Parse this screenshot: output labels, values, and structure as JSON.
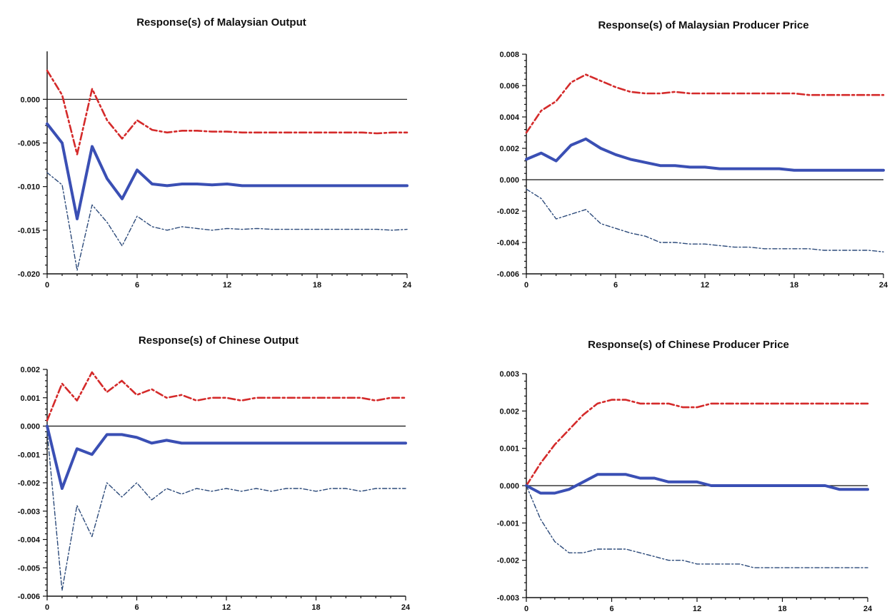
{
  "chart_data": [
    {
      "type": "line",
      "title": "Response(s) of Malaysian Output",
      "xlabel": "",
      "ylabel": "",
      "xlim": [
        0,
        24
      ],
      "ylim": [
        -0.02,
        0.0055
      ],
      "x_ticks": [
        0,
        6,
        12,
        18,
        24
      ],
      "y_ticks": [
        {
          "value": 0.0,
          "label": "0.000"
        },
        {
          "value": -0.005,
          "label": "-0.005"
        },
        {
          "value": -0.01,
          "label": "-0.010"
        },
        {
          "value": -0.015,
          "label": "-0.015"
        },
        {
          "value": -0.02,
          "label": "-0.020"
        }
      ],
      "zero_line": true,
      "x": [
        0,
        1,
        2,
        3,
        4,
        5,
        6,
        7,
        8,
        9,
        10,
        11,
        12,
        13,
        14,
        15,
        16,
        17,
        18,
        19,
        20,
        21,
        22,
        23,
        24
      ],
      "series": [
        {
          "style": "upper",
          "color": "#d42a2a",
          "values": [
            0.0033,
            0.0005,
            -0.0063,
            0.0012,
            -0.0024,
            -0.0045,
            -0.0024,
            -0.0035,
            -0.0038,
            -0.0036,
            -0.0036,
            -0.0037,
            -0.0037,
            -0.0038,
            -0.0038,
            -0.0038,
            -0.0038,
            -0.0038,
            -0.0038,
            -0.0038,
            -0.0038,
            -0.0038,
            -0.0039,
            -0.0038,
            -0.0038
          ]
        },
        {
          "style": "mid",
          "color": "#3a4fb4",
          "values": [
            -0.0028,
            -0.005,
            -0.0137,
            -0.0054,
            -0.0091,
            -0.0114,
            -0.0081,
            -0.0097,
            -0.0099,
            -0.0097,
            -0.0097,
            -0.0098,
            -0.0097,
            -0.0099,
            -0.0099,
            -0.0099,
            -0.0099,
            -0.0099,
            -0.0099,
            -0.0099,
            -0.0099,
            -0.0099,
            -0.0099,
            -0.0099,
            -0.0099
          ]
        },
        {
          "style": "lower",
          "color": "#2c4a7a",
          "values": [
            -0.0084,
            -0.0098,
            -0.0196,
            -0.0121,
            -0.0141,
            -0.0168,
            -0.0134,
            -0.0146,
            -0.015,
            -0.0146,
            -0.0148,
            -0.015,
            -0.0148,
            -0.0149,
            -0.0148,
            -0.0149,
            -0.0149,
            -0.0149,
            -0.0149,
            -0.0149,
            -0.0149,
            -0.0149,
            -0.0149,
            -0.015,
            -0.0149
          ]
        }
      ]
    },
    {
      "type": "line",
      "title": "Response(s) of Malaysian Producer Price",
      "xlabel": "",
      "ylabel": "",
      "xlim": [
        0,
        24
      ],
      "ylim": [
        -0.006,
        0.008
      ],
      "x_ticks": [
        0,
        6,
        12,
        18,
        24
      ],
      "y_ticks": [
        {
          "value": 0.008,
          "label": "0.008"
        },
        {
          "value": 0.006,
          "label": "0.006"
        },
        {
          "value": 0.004,
          "label": "0.004"
        },
        {
          "value": 0.002,
          "label": "0.002"
        },
        {
          "value": 0.0,
          "label": "0.000"
        },
        {
          "value": -0.002,
          "label": "-0.002"
        },
        {
          "value": -0.004,
          "label": "-0.004"
        },
        {
          "value": -0.006,
          "label": "-0.006"
        }
      ],
      "zero_line": true,
      "x": [
        0,
        1,
        2,
        3,
        4,
        5,
        6,
        7,
        8,
        9,
        10,
        11,
        12,
        13,
        14,
        15,
        16,
        17,
        18,
        19,
        20,
        21,
        22,
        23,
        24
      ],
      "series": [
        {
          "style": "upper",
          "color": "#d42a2a",
          "values": [
            0.003,
            0.0044,
            0.005,
            0.0062,
            0.0067,
            0.0063,
            0.0059,
            0.0056,
            0.0055,
            0.0055,
            0.0056,
            0.0055,
            0.0055,
            0.0055,
            0.0055,
            0.0055,
            0.0055,
            0.0055,
            0.0055,
            0.0054,
            0.0054,
            0.0054,
            0.0054,
            0.0054,
            0.0054
          ]
        },
        {
          "style": "mid",
          "color": "#3a4fb4",
          "values": [
            0.0013,
            0.0017,
            0.0012,
            0.0022,
            0.0026,
            0.002,
            0.0016,
            0.0013,
            0.0011,
            0.0009,
            0.0009,
            0.0008,
            0.0008,
            0.0007,
            0.0007,
            0.0007,
            0.0007,
            0.0007,
            0.0006,
            0.0006,
            0.0006,
            0.0006,
            0.0006,
            0.0006,
            0.0006
          ]
        },
        {
          "style": "lower",
          "color": "#2c4a7a",
          "values": [
            -0.0006,
            -0.0012,
            -0.0025,
            -0.0022,
            -0.0019,
            -0.0028,
            -0.0031,
            -0.0034,
            -0.0036,
            -0.004,
            -0.004,
            -0.0041,
            -0.0041,
            -0.0042,
            -0.0043,
            -0.0043,
            -0.0044,
            -0.0044,
            -0.0044,
            -0.0044,
            -0.0045,
            -0.0045,
            -0.0045,
            -0.0045,
            -0.0046
          ]
        }
      ]
    },
    {
      "type": "line",
      "title": "Response(s) of Chinese Output",
      "xlabel": "",
      "ylabel": "",
      "xlim": [
        0,
        24
      ],
      "ylim": [
        -0.006,
        0.002
      ],
      "x_ticks": [
        0,
        6,
        12,
        18,
        24
      ],
      "y_ticks": [
        {
          "value": 0.002,
          "label": "0.002"
        },
        {
          "value": 0.001,
          "label": "0.001"
        },
        {
          "value": 0.0,
          "label": "0.000"
        },
        {
          "value": -0.001,
          "label": "-0.001"
        },
        {
          "value": -0.002,
          "label": "-0.002"
        },
        {
          "value": -0.003,
          "label": "-0.003"
        },
        {
          "value": -0.004,
          "label": "-0.004"
        },
        {
          "value": -0.005,
          "label": "-0.005"
        },
        {
          "value": -0.006,
          "label": "-0.006"
        }
      ],
      "zero_line": true,
      "x": [
        0,
        1,
        2,
        3,
        4,
        5,
        6,
        7,
        8,
        9,
        10,
        11,
        12,
        13,
        14,
        15,
        16,
        17,
        18,
        19,
        20,
        21,
        22,
        23,
        24
      ],
      "series": [
        {
          "style": "upper",
          "color": "#d42a2a",
          "values": [
            0.0002,
            0.0015,
            0.0009,
            0.0019,
            0.0012,
            0.0016,
            0.0011,
            0.0013,
            0.001,
            0.0011,
            0.0009,
            0.001,
            0.001,
            0.0009,
            0.001,
            0.001,
            0.001,
            0.001,
            0.001,
            0.001,
            0.001,
            0.001,
            0.0009,
            0.001,
            0.001
          ]
        },
        {
          "style": "mid",
          "color": "#3a4fb4",
          "values": [
            0.0,
            -0.0022,
            -0.0008,
            -0.001,
            -0.0003,
            -0.0003,
            -0.0004,
            -0.0006,
            -0.0005,
            -0.0006,
            -0.0006,
            -0.0006,
            -0.0006,
            -0.0006,
            -0.0006,
            -0.0006,
            -0.0006,
            -0.0006,
            -0.0006,
            -0.0006,
            -0.0006,
            -0.0006,
            -0.0006,
            -0.0006,
            -0.0006
          ]
        },
        {
          "style": "lower",
          "color": "#2c4a7a",
          "values": [
            -0.0002,
            -0.0058,
            -0.0028,
            -0.0039,
            -0.002,
            -0.0025,
            -0.002,
            -0.0026,
            -0.0022,
            -0.0024,
            -0.0022,
            -0.0023,
            -0.0022,
            -0.0023,
            -0.0022,
            -0.0023,
            -0.0022,
            -0.0022,
            -0.0023,
            -0.0022,
            -0.0022,
            -0.0023,
            -0.0022,
            -0.0022,
            -0.0022
          ]
        }
      ]
    },
    {
      "type": "line",
      "title": "Response(s) of Chinese Producer Price",
      "xlabel": "",
      "ylabel": "",
      "xlim": [
        0,
        24
      ],
      "ylim": [
        -0.003,
        0.003
      ],
      "x_ticks": [
        0,
        6,
        12,
        18,
        24
      ],
      "y_ticks": [
        {
          "value": 0.003,
          "label": "0.003"
        },
        {
          "value": 0.002,
          "label": "0.002"
        },
        {
          "value": 0.001,
          "label": "0.001"
        },
        {
          "value": 0.0,
          "label": "0.000"
        },
        {
          "value": -0.001,
          "label": "-0.001"
        },
        {
          "value": -0.002,
          "label": "-0.002"
        },
        {
          "value": -0.003,
          "label": "-0.003"
        }
      ],
      "zero_line": true,
      "x": [
        0,
        1,
        2,
        3,
        4,
        5,
        6,
        7,
        8,
        9,
        10,
        11,
        12,
        13,
        14,
        15,
        16,
        17,
        18,
        19,
        20,
        21,
        22,
        23,
        24
      ],
      "series": [
        {
          "style": "upper",
          "color": "#d42a2a",
          "values": [
            0.0,
            0.0006,
            0.0011,
            0.0015,
            0.0019,
            0.0022,
            0.0023,
            0.0023,
            0.0022,
            0.0022,
            0.0022,
            0.0021,
            0.0021,
            0.0022,
            0.0022,
            0.0022,
            0.0022,
            0.0022,
            0.0022,
            0.0022,
            0.0022,
            0.0022,
            0.0022,
            0.0022,
            0.0022
          ]
        },
        {
          "style": "mid",
          "color": "#3a4fb4",
          "values": [
            0.0,
            -0.0002,
            -0.0002,
            -0.0001,
            0.0001,
            0.0003,
            0.0003,
            0.0003,
            0.0002,
            0.0002,
            0.0001,
            0.0001,
            0.0001,
            0.0,
            0.0,
            0.0,
            0.0,
            0.0,
            0.0,
            0.0,
            0.0,
            0.0,
            -0.0001,
            -0.0001,
            -0.0001
          ]
        },
        {
          "style": "lower",
          "color": "#2c4a7a",
          "values": [
            0.0,
            -0.0009,
            -0.0015,
            -0.0018,
            -0.0018,
            -0.0017,
            -0.0017,
            -0.0017,
            -0.0018,
            -0.0019,
            -0.002,
            -0.002,
            -0.0021,
            -0.0021,
            -0.0021,
            -0.0021,
            -0.0022,
            -0.0022,
            -0.0022,
            -0.0022,
            -0.0022,
            -0.0022,
            -0.0022,
            -0.0022,
            -0.0022
          ]
        }
      ]
    }
  ]
}
